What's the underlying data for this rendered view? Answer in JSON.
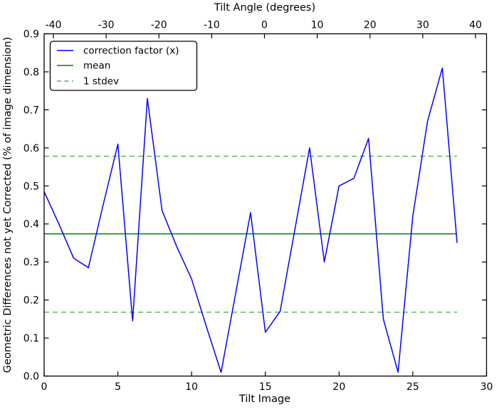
{
  "figure": {
    "background": "#ffffff"
  },
  "chart_data": {
    "type": "line",
    "title": "",
    "top_axis": {
      "label": "Tilt Angle (degrees)",
      "ticks": [
        "-40",
        "-30",
        "-20",
        "-10",
        "0",
        "10",
        "20",
        "30",
        "40"
      ]
    },
    "xlabel": "Tilt Image",
    "ylabel": "Geometric Differences not yet Corrected (% of image dimension)",
    "x_ticks": [
      "0",
      "5",
      "10",
      "15",
      "20",
      "25",
      "30"
    ],
    "y_ticks": [
      "0.0",
      "0.1",
      "0.2",
      "0.3",
      "0.4",
      "0.5",
      "0.6",
      "0.7",
      "0.8",
      "0.9"
    ],
    "xlim": [
      0,
      30
    ],
    "ylim": [
      0.0,
      0.9
    ],
    "grid": false,
    "legend_position": "upper left",
    "x": [
      0,
      1,
      2,
      3,
      4,
      5,
      6,
      7,
      8,
      9,
      10,
      11,
      12,
      13,
      14,
      15,
      16,
      17,
      18,
      19,
      20,
      21,
      22,
      23,
      24,
      25,
      26,
      27,
      28
    ],
    "series": [
      {
        "name": "correction factor (x)",
        "color": "#0000ff",
        "style": "solid",
        "values": [
          0.485,
          0.4,
          0.31,
          0.285,
          0.45,
          0.61,
          0.145,
          0.73,
          0.435,
          0.34,
          0.255,
          0.13,
          0.01,
          0.22,
          0.43,
          0.115,
          0.17,
          0.385,
          0.6,
          0.3,
          0.5,
          0.52,
          0.625,
          0.15,
          0.01,
          0.42,
          0.67,
          0.81,
          0.35
        ]
      }
    ],
    "mean_line": {
      "label": "mean",
      "value": 0.374,
      "color": "#008000",
      "style": "solid"
    },
    "stdev_lines": {
      "label": "1 stdev",
      "upper": 0.578,
      "lower": 0.168,
      "color": "#55b055",
      "style": "dashed"
    }
  }
}
